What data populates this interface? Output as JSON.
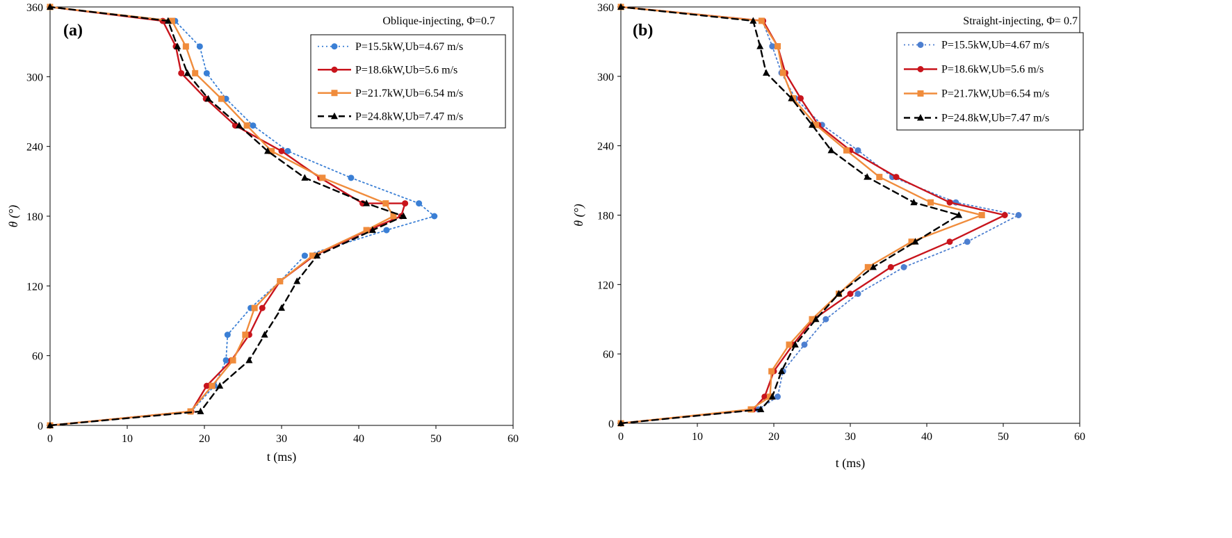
{
  "chart_data": [
    {
      "type": "line",
      "panel_label": "(a)",
      "title": "Oblique-injecting, Φ=0.7",
      "xlabel": "t (ms)",
      "ylabel": "θ (°)",
      "xlim": [
        0,
        60
      ],
      "ylim": [
        0,
        360
      ],
      "xticks": [
        0,
        10,
        20,
        30,
        40,
        50,
        60
      ],
      "yticks": [
        0,
        60,
        120,
        180,
        240,
        300,
        360
      ],
      "grid": false,
      "legend_position": "top-right",
      "series": [
        {
          "name": "P=15.5kW,Ub=4.67 m/s",
          "color": "#3a7fd5",
          "style": "dotted",
          "marker": "circle",
          "points": [
            [
              0,
              0
            ],
            [
              18.3,
              12
            ],
            [
              21.3,
              34
            ],
            [
              22.8,
              56
            ],
            [
              23,
              78
            ],
            [
              26,
              101
            ],
            [
              29.8,
              124
            ],
            [
              33,
              146
            ],
            [
              43.6,
              168
            ],
            [
              49.8,
              180
            ],
            [
              47.8,
              191
            ],
            [
              39,
              213
            ],
            [
              30.8,
              236
            ],
            [
              26.3,
              258
            ],
            [
              22.8,
              281
            ],
            [
              20.3,
              303
            ],
            [
              19.4,
              326
            ],
            [
              16.2,
              348
            ],
            [
              0,
              360
            ]
          ]
        },
        {
          "name": "P=18.6kW,Ub=5.6 m/s",
          "color": "#c8141c",
          "style": "solid",
          "marker": "circle",
          "points": [
            [
              0,
              0
            ],
            [
              18.3,
              12
            ],
            [
              20.3,
              34
            ],
            [
              23.5,
              56
            ],
            [
              25.8,
              78
            ],
            [
              27.5,
              101
            ],
            [
              29.8,
              124
            ],
            [
              34.2,
              146
            ],
            [
              41.2,
              168
            ],
            [
              45.5,
              180
            ],
            [
              46,
              191
            ],
            [
              40.5,
              191
            ],
            [
              35,
              213
            ],
            [
              30,
              236
            ],
            [
              24,
              258
            ],
            [
              20.2,
              281
            ],
            [
              17,
              303
            ],
            [
              16.3,
              326
            ],
            [
              14.6,
              348
            ],
            [
              0,
              360
            ]
          ]
        },
        {
          "name": "P=21.7kW,Ub=6.54 m/s",
          "color": "#f08c3c",
          "style": "solid",
          "marker": "square",
          "points": [
            [
              0,
              0
            ],
            [
              18.2,
              12
            ],
            [
              21,
              34
            ],
            [
              23.7,
              56
            ],
            [
              25.3,
              78
            ],
            [
              26.5,
              101
            ],
            [
              29.8,
              124
            ],
            [
              34,
              146
            ],
            [
              41,
              168
            ],
            [
              44.5,
              180
            ],
            [
              43.5,
              191
            ],
            [
              35.3,
              213
            ],
            [
              28.7,
              236
            ],
            [
              25.5,
              258
            ],
            [
              22.2,
              281
            ],
            [
              18.8,
              303
            ],
            [
              17.6,
              326
            ],
            [
              15.8,
              348
            ],
            [
              0,
              360
            ]
          ]
        },
        {
          "name": "P=24.8kW,Ub=7.47 m/s",
          "color": "#000000",
          "style": "dashed",
          "marker": "triangle",
          "points": [
            [
              0,
              0
            ],
            [
              19.5,
              12
            ],
            [
              22,
              34
            ],
            [
              25.8,
              56
            ],
            [
              27.8,
              78
            ],
            [
              30,
              101
            ],
            [
              32,
              124
            ],
            [
              34.6,
              146
            ],
            [
              41.8,
              168
            ],
            [
              45.8,
              180
            ],
            [
              41,
              191
            ],
            [
              33,
              213
            ],
            [
              28.2,
              236
            ],
            [
              24.5,
              258
            ],
            [
              20.5,
              281
            ],
            [
              17.8,
              303
            ],
            [
              16.5,
              326
            ],
            [
              15.3,
              348
            ],
            [
              0,
              360
            ]
          ]
        }
      ]
    },
    {
      "type": "line",
      "panel_label": "(b)",
      "title": "Straight-injecting, Φ= 0.7",
      "xlabel": "t (ms)",
      "ylabel": "θ (°)",
      "xlim": [
        0,
        60
      ],
      "ylim": [
        0,
        360
      ],
      "xticks": [
        0,
        10,
        20,
        30,
        40,
        50,
        60
      ],
      "yticks": [
        0,
        60,
        120,
        180,
        240,
        300,
        360
      ],
      "grid": false,
      "legend_position": "top-right",
      "series": [
        {
          "name": "P=15.5kW,Ub=4.67 m/s",
          "color": "#4d7fd0",
          "style": "dotted",
          "marker": "circle",
          "points": [
            [
              0,
              0
            ],
            [
              18,
              12
            ],
            [
              20.5,
              23
            ],
            [
              21.2,
              45
            ],
            [
              24,
              68
            ],
            [
              26.8,
              90
            ],
            [
              31,
              112
            ],
            [
              37,
              135
            ],
            [
              45.3,
              157
            ],
            [
              52,
              180
            ],
            [
              43.8,
              191
            ],
            [
              35.5,
              213
            ],
            [
              31,
              236
            ],
            [
              26.3,
              258
            ],
            [
              22.8,
              281
            ],
            [
              21,
              303
            ],
            [
              19.8,
              326
            ],
            [
              18.5,
              348
            ],
            [
              0,
              360
            ]
          ]
        },
        {
          "name": "P=18.6kW,Ub=5.6 m/s",
          "color": "#c8141c",
          "style": "solid",
          "marker": "circle",
          "points": [
            [
              0,
              0
            ],
            [
              17.3,
              12
            ],
            [
              18.8,
              23
            ],
            [
              20,
              45
            ],
            [
              22.5,
              68
            ],
            [
              25.2,
              90
            ],
            [
              30,
              112
            ],
            [
              35.3,
              135
            ],
            [
              43,
              157
            ],
            [
              50.2,
              180
            ],
            [
              43,
              191
            ],
            [
              36,
              213
            ],
            [
              30,
              236
            ],
            [
              25.8,
              258
            ],
            [
              23.5,
              281
            ],
            [
              21.5,
              303
            ],
            [
              20.5,
              326
            ],
            [
              18.6,
              348
            ],
            [
              0,
              360
            ]
          ]
        },
        {
          "name": "P=21.7kW,Ub=6.54 m/s",
          "color": "#f08c3c",
          "style": "solid",
          "marker": "square",
          "points": [
            [
              0,
              0
            ],
            [
              17,
              12
            ],
            [
              19.5,
              23
            ],
            [
              19.7,
              45
            ],
            [
              22,
              68
            ],
            [
              25,
              90
            ],
            [
              28.5,
              112
            ],
            [
              32.3,
              135
            ],
            [
              38,
              157
            ],
            [
              47.2,
              180
            ],
            [
              40.5,
              191
            ],
            [
              33.8,
              213
            ],
            [
              29.5,
              236
            ],
            [
              25.5,
              258
            ],
            [
              22.5,
              281
            ],
            [
              21.2,
              303
            ],
            [
              20.5,
              326
            ],
            [
              18.4,
              348
            ],
            [
              0,
              360
            ]
          ]
        },
        {
          "name": "P=24.8kW,Ub=7.47 m/s",
          "color": "#000000",
          "style": "dashed",
          "marker": "triangle",
          "points": [
            [
              0,
              0
            ],
            [
              18.3,
              12
            ],
            [
              19.8,
              23
            ],
            [
              21,
              45
            ],
            [
              22.8,
              68
            ],
            [
              25.5,
              90
            ],
            [
              28.5,
              112
            ],
            [
              33,
              135
            ],
            [
              38.5,
              157
            ],
            [
              44.2,
              180
            ],
            [
              38.3,
              191
            ],
            [
              32.2,
              213
            ],
            [
              27.5,
              236
            ],
            [
              25,
              258
            ],
            [
              22.3,
              281
            ],
            [
              19,
              303
            ],
            [
              18.2,
              326
            ],
            [
              17.3,
              348
            ],
            [
              0,
              360
            ]
          ]
        }
      ]
    }
  ]
}
